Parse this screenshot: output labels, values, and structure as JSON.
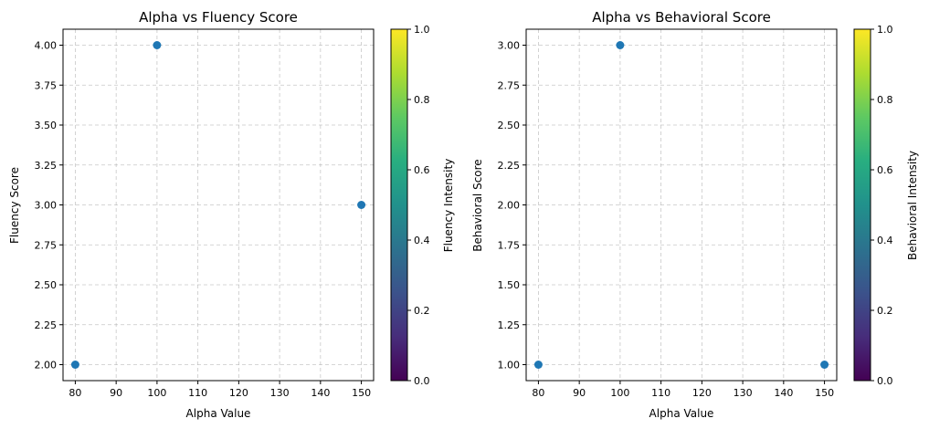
{
  "chart_data": [
    {
      "type": "scatter",
      "title": "Alpha vs Fluency Score",
      "xlabel": "Alpha Value",
      "ylabel": "Fluency Score",
      "xlim": [
        77,
        153
      ],
      "ylim": [
        1.9,
        4.1
      ],
      "xticks": [
        "80",
        "90",
        "100",
        "110",
        "120",
        "130",
        "140",
        "150"
      ],
      "yticks": [
        "2.00",
        "2.25",
        "2.50",
        "2.75",
        "3.00",
        "3.25",
        "3.50",
        "3.75",
        "4.00"
      ],
      "grid": true,
      "points": [
        {
          "x": 80,
          "y": 2.0
        },
        {
          "x": 100,
          "y": 4.0
        },
        {
          "x": 150,
          "y": 3.0
        }
      ],
      "point_color": "#1f77b4",
      "colorbar": {
        "label": "Fluency Intensity",
        "colormap": "viridis",
        "range": [
          0,
          1
        ],
        "ticks": [
          "0.0",
          "0.2",
          "0.4",
          "0.6",
          "0.8",
          "1.0"
        ]
      }
    },
    {
      "type": "scatter",
      "title": "Alpha vs Behavioral Score",
      "xlabel": "Alpha Value",
      "ylabel": "Behavioral Score",
      "xlim": [
        77,
        153
      ],
      "ylim": [
        0.9,
        3.1
      ],
      "xticks": [
        "80",
        "90",
        "100",
        "110",
        "120",
        "130",
        "140",
        "150"
      ],
      "yticks": [
        "1.00",
        "1.25",
        "1.50",
        "1.75",
        "2.00",
        "2.25",
        "2.50",
        "2.75",
        "3.00"
      ],
      "grid": true,
      "points": [
        {
          "x": 80,
          "y": 1.0
        },
        {
          "x": 100,
          "y": 3.0
        },
        {
          "x": 150,
          "y": 1.0
        }
      ],
      "point_color": "#1f77b4",
      "colorbar": {
        "label": "Behavioral Intensity",
        "colormap": "viridis",
        "range": [
          0,
          1
        ],
        "ticks": [
          "0.0",
          "0.2",
          "0.4",
          "0.6",
          "0.8",
          "1.0"
        ]
      }
    }
  ]
}
